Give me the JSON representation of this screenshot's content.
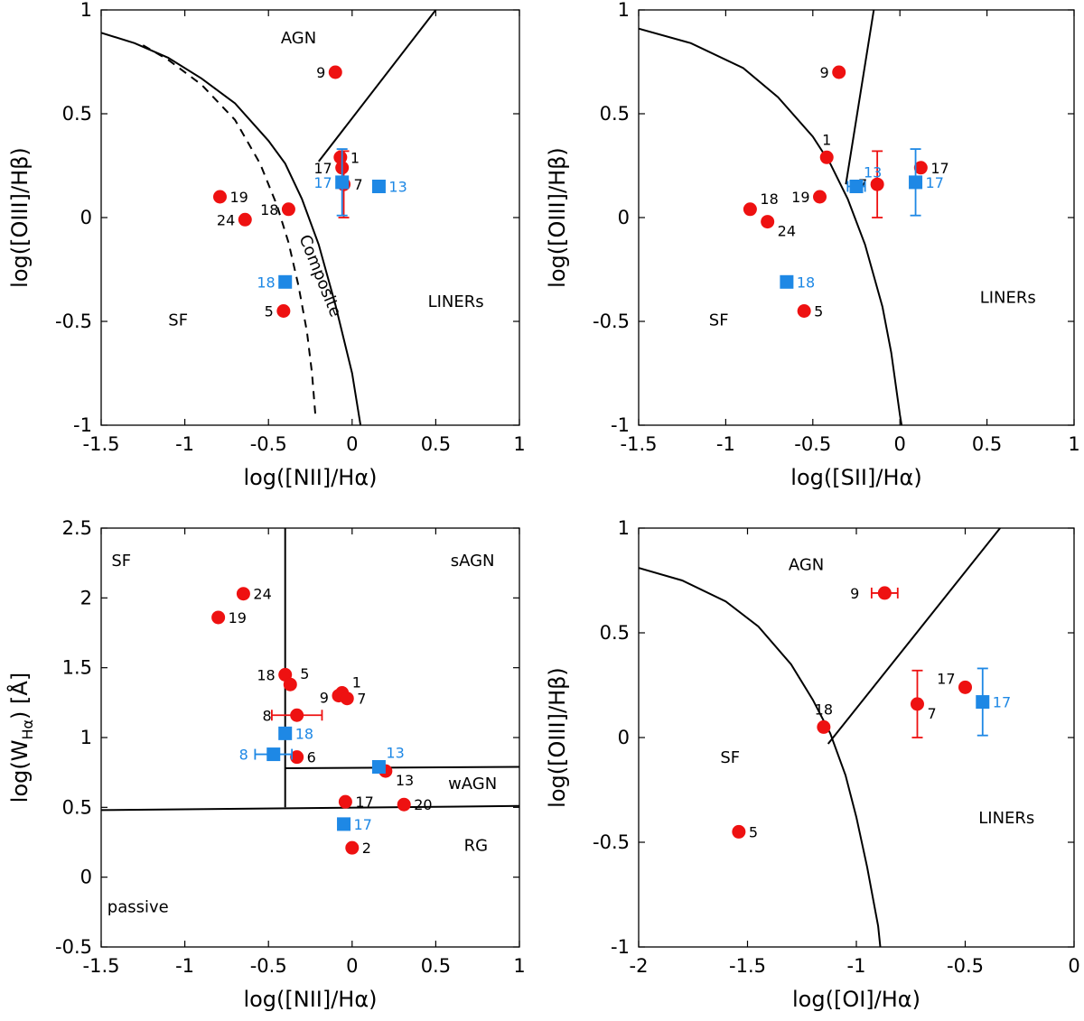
{
  "colors": {
    "red": "#ee1111",
    "blue": "#1e88e5",
    "axis": "#000000"
  },
  "chart_data": [
    {
      "type": "scatter",
      "xlabel": "log([NII]/Hα)",
      "ylabel": "log([OIII]/Hβ)",
      "xlim": [
        -1.5,
        1
      ],
      "ylim": [
        -1,
        1
      ],
      "xticks": [
        -1.5,
        -1,
        -0.5,
        0,
        0.5,
        1
      ],
      "xticklabels": [
        "-1.5",
        "-1",
        "-0.5",
        "0",
        "0.5",
        "1"
      ],
      "yticks": [
        -1,
        -0.5,
        0,
        0.5,
        1
      ],
      "yticklabels": [
        "-1",
        "-0.5",
        "0",
        "0.5",
        "1"
      ],
      "curves": [
        {
          "style": "solid",
          "points": [
            [
              -1.5,
              0.89
            ],
            [
              -1.3,
              0.84
            ],
            [
              -1.1,
              0.77
            ],
            [
              -0.9,
              0.67
            ],
            [
              -0.7,
              0.55
            ],
            [
              -0.5,
              0.37
            ],
            [
              -0.4,
              0.26
            ],
            [
              -0.3,
              0.09
            ],
            [
              -0.2,
              -0.13
            ],
            [
              -0.1,
              -0.42
            ],
            [
              0,
              -0.75
            ],
            [
              0.05,
              -1
            ]
          ]
        },
        {
          "style": "dashed",
          "points": [
            [
              -1.25,
              0.83
            ],
            [
              -1.1,
              0.76
            ],
            [
              -0.9,
              0.64
            ],
            [
              -0.7,
              0.47
            ],
            [
              -0.55,
              0.26
            ],
            [
              -0.45,
              0.06
            ],
            [
              -0.38,
              -0.12
            ],
            [
              -0.32,
              -0.33
            ],
            [
              -0.27,
              -0.55
            ],
            [
              -0.24,
              -0.75
            ],
            [
              -0.22,
              -0.95
            ]
          ]
        },
        {
          "style": "solid",
          "points": [
            [
              -0.2,
              0.27
            ],
            [
              0.5,
              1
            ]
          ]
        }
      ],
      "regions": [
        {
          "text": "AGN",
          "x": -0.32,
          "y": 0.84
        },
        {
          "text": "SF",
          "x": -1.04,
          "y": -0.52
        },
        {
          "text": "LINERs",
          "x": 0.62,
          "y": -0.43
        },
        {
          "text": "Composite",
          "x": -0.22,
          "y": -0.29,
          "rotate": 68
        }
      ],
      "series": [
        {
          "marker": "circle",
          "color": "red",
          "points": [
            {
              "x": -0.1,
              "y": 0.7,
              "label": "9",
              "pos": "left"
            },
            {
              "x": -0.07,
              "y": 0.29,
              "label": "1",
              "pos": "right"
            },
            {
              "x": -0.06,
              "y": 0.24,
              "label": "17",
              "pos": "left"
            },
            {
              "x": -0.05,
              "y": 0.16,
              "label": "7",
              "pos": "right",
              "yerr": 0.16
            },
            {
              "x": -0.79,
              "y": 0.1,
              "label": "19",
              "pos": "right"
            },
            {
              "x": -0.38,
              "y": 0.04,
              "label": "18",
              "pos": "left"
            },
            {
              "x": -0.64,
              "y": -0.01,
              "label": "24",
              "pos": "left"
            },
            {
              "x": -0.41,
              "y": -0.45,
              "label": "5",
              "pos": "left"
            }
          ]
        },
        {
          "marker": "square",
          "color": "blue",
          "points": [
            {
              "x": -0.06,
              "y": 0.17,
              "label": "17",
              "pos": "left",
              "yerr": 0.16
            },
            {
              "x": 0.16,
              "y": 0.15,
              "label": "13",
              "pos": "right"
            },
            {
              "x": -0.4,
              "y": -0.31,
              "label": "18",
              "pos": "left"
            }
          ]
        }
      ]
    },
    {
      "type": "scatter",
      "xlabel": "log([SII]/Hα)",
      "ylabel": "log([OIII]/Hβ)",
      "xlim": [
        -1.5,
        1
      ],
      "ylim": [
        -1,
        1
      ],
      "xticks": [
        -1.5,
        -1,
        -0.5,
        0,
        0.5,
        1
      ],
      "xticklabels": [
        "-1.5",
        "-1",
        "-0.5",
        "0",
        "0.5",
        "1"
      ],
      "yticks": [
        -1,
        -0.5,
        0,
        0.5,
        1
      ],
      "yticklabels": [
        "-1",
        "-0.5",
        "0",
        "0.5",
        "1"
      ],
      "curves": [
        {
          "style": "solid",
          "points": [
            [
              -1.5,
              0.91
            ],
            [
              -1.2,
              0.84
            ],
            [
              -0.9,
              0.72
            ],
            [
              -0.7,
              0.58
            ],
            [
              -0.5,
              0.39
            ],
            [
              -0.4,
              0.26
            ],
            [
              -0.3,
              0.09
            ],
            [
              -0.2,
              -0.13
            ],
            [
              -0.1,
              -0.43
            ],
            [
              -0.05,
              -0.65
            ],
            [
              0,
              -0.95
            ],
            [
              0.01,
              -1
            ]
          ]
        },
        {
          "style": "solid",
          "points": [
            [
              -0.31,
              0.16
            ],
            [
              -0.15,
              1
            ]
          ]
        }
      ],
      "regions": [
        {
          "text": "SF",
          "x": -1.04,
          "y": -0.52
        },
        {
          "text": "LINERs",
          "x": 0.62,
          "y": -0.41
        }
      ],
      "series": [
        {
          "marker": "circle",
          "color": "red",
          "points": [
            {
              "x": -0.35,
              "y": 0.7,
              "label": "9",
              "pos": "left"
            },
            {
              "x": -0.42,
              "y": 0.29,
              "label": "1",
              "pos": "above"
            },
            {
              "x": 0.12,
              "y": 0.24,
              "label": "17",
              "pos": "right"
            },
            {
              "x": -0.13,
              "y": 0.16,
              "label": "7",
              "pos": "left",
              "yerr": 0.16
            },
            {
              "x": -0.46,
              "y": 0.1,
              "label": "19",
              "pos": "left"
            },
            {
              "x": -0.86,
              "y": 0.04,
              "label": "18",
              "pos": "right-up"
            },
            {
              "x": -0.76,
              "y": -0.02,
              "label": "24",
              "pos": "right-down"
            },
            {
              "x": -0.55,
              "y": -0.45,
              "label": "5",
              "pos": "right"
            }
          ]
        },
        {
          "marker": "square",
          "color": "blue",
          "points": [
            {
              "x": -0.25,
              "y": 0.15,
              "label": "13",
              "pos": "up-right",
              "xerr": 0.05
            },
            {
              "x": 0.09,
              "y": 0.17,
              "label": "17",
              "pos": "right",
              "yerr": 0.16
            },
            {
              "x": -0.65,
              "y": -0.31,
              "label": "18",
              "pos": "right"
            }
          ]
        }
      ]
    },
    {
      "type": "scatter",
      "xlabel": "log([NII]/Hα)",
      "ylabel": "log(W",
      "ylabel_sub": "Hα",
      "ylabel_tail": ") [Å]",
      "xlim": [
        -1.5,
        1
      ],
      "ylim": [
        -0.5,
        2.5
      ],
      "xticks": [
        -1.5,
        -1,
        -0.5,
        0,
        0.5,
        1
      ],
      "xticklabels": [
        "-1.5",
        "-1",
        "-0.5",
        "0",
        "0.5",
        "1"
      ],
      "yticks": [
        -0.5,
        0,
        0.5,
        1,
        1.5,
        2,
        2.5
      ],
      "yticklabels": [
        "-0.5",
        "0",
        "0.5",
        "1",
        "1.5",
        "2",
        "2.5"
      ],
      "curves": [
        {
          "style": "solid",
          "points": [
            [
              -0.4,
              0.5
            ],
            [
              -0.4,
              2.5
            ]
          ]
        },
        {
          "style": "solid",
          "points": [
            [
              -1.5,
              0.48
            ],
            [
              1,
              0.51
            ]
          ]
        },
        {
          "style": "solid",
          "points": [
            [
              -0.4,
              0.78
            ],
            [
              1,
              0.79
            ]
          ]
        }
      ],
      "regions": [
        {
          "text": "SF",
          "x": -1.38,
          "y": 2.23
        },
        {
          "text": "sAGN",
          "x": 0.72,
          "y": 2.23
        },
        {
          "text": "wAGN",
          "x": 0.72,
          "y": 0.63
        },
        {
          "text": "RG",
          "x": 0.74,
          "y": 0.19
        },
        {
          "text": "passive",
          "x": -1.28,
          "y": -0.25
        }
      ],
      "series": [
        {
          "marker": "circle",
          "color": "red",
          "points": [
            {
              "x": -0.65,
              "y": 2.03,
              "label": "24",
              "pos": "right"
            },
            {
              "x": -0.8,
              "y": 1.86,
              "label": "19",
              "pos": "right"
            },
            {
              "x": -0.4,
              "y": 1.45,
              "label": "18",
              "pos": "left"
            },
            {
              "x": -0.37,
              "y": 1.38,
              "label": "5",
              "pos": "right-up"
            },
            {
              "x": -0.06,
              "y": 1.32,
              "label": "1",
              "pos": "right-up"
            },
            {
              "x": -0.08,
              "y": 1.3,
              "label": "9",
              "pos": "left-down"
            },
            {
              "x": -0.03,
              "y": 1.28,
              "label": "7",
              "pos": "right"
            },
            {
              "x": -0.33,
              "y": 1.16,
              "label": "8",
              "pos": "left-far",
              "xerr": 0.15
            },
            {
              "x": -0.33,
              "y": 0.86,
              "label": "6",
              "pos": "right"
            },
            {
              "x": 0.2,
              "y": 0.76,
              "label": "13",
              "pos": "right-down"
            },
            {
              "x": -0.04,
              "y": 0.54,
              "label": "17",
              "pos": "right"
            },
            {
              "x": 0.31,
              "y": 0.52,
              "label": "20",
              "pos": "right"
            },
            {
              "x": 0.0,
              "y": 0.21,
              "label": "2",
              "pos": "right"
            }
          ]
        },
        {
          "marker": "square",
          "color": "blue",
          "points": [
            {
              "x": -0.4,
              "y": 1.03,
              "label": "18",
              "pos": "right"
            },
            {
              "x": -0.47,
              "y": 0.88,
              "label": "8",
              "pos": "left-far",
              "xerr": 0.11
            },
            {
              "x": 0.16,
              "y": 0.79,
              "label": "13",
              "pos": "up-right"
            },
            {
              "x": -0.05,
              "y": 0.38,
              "label": "17",
              "pos": "right"
            }
          ]
        }
      ]
    },
    {
      "type": "scatter",
      "xlabel": "log([OI]/Hα)",
      "ylabel": "log([OIII]/Hβ)",
      "xlim": [
        -2,
        0
      ],
      "ylim": [
        -1,
        1
      ],
      "xticks": [
        -2,
        -1.5,
        -1,
        -0.5,
        0
      ],
      "xticklabels": [
        "-2",
        "-1.5",
        "-1",
        "-0.5",
        "0"
      ],
      "yticks": [
        -1,
        -0.5,
        0,
        0.5,
        1
      ],
      "yticklabels": [
        "-1",
        "-0.5",
        "0",
        "0.5",
        "1"
      ],
      "curves": [
        {
          "style": "solid",
          "points": [
            [
              -2,
              0.81
            ],
            [
              -1.8,
              0.75
            ],
            [
              -1.6,
              0.65
            ],
            [
              -1.45,
              0.53
            ],
            [
              -1.3,
              0.35
            ],
            [
              -1.2,
              0.18
            ],
            [
              -1.12,
              0.02
            ],
            [
              -1.05,
              -0.18
            ],
            [
              -1.0,
              -0.38
            ],
            [
              -0.95,
              -0.62
            ],
            [
              -0.9,
              -0.9
            ],
            [
              -0.89,
              -1
            ]
          ]
        },
        {
          "style": "solid",
          "points": [
            [
              -1.13,
              -0.03
            ],
            [
              -0.34,
              1
            ]
          ]
        }
      ],
      "regions": [
        {
          "text": "AGN",
          "x": -1.23,
          "y": 0.8
        },
        {
          "text": "SF",
          "x": -1.58,
          "y": -0.12
        },
        {
          "text": "LINERs",
          "x": -0.31,
          "y": -0.41
        }
      ],
      "series": [
        {
          "marker": "circle",
          "color": "red",
          "points": [
            {
              "x": -0.87,
              "y": 0.69,
              "label": "9",
              "pos": "left-far",
              "xerr": 0.06
            },
            {
              "x": -0.5,
              "y": 0.24,
              "label": "17",
              "pos": "left-up"
            },
            {
              "x": -0.72,
              "y": 0.16,
              "label": "7",
              "pos": "right-down",
              "yerr": 0.16
            },
            {
              "x": -1.15,
              "y": 0.05,
              "label": "18",
              "pos": "above"
            },
            {
              "x": -1.54,
              "y": -0.45,
              "label": "5",
              "pos": "right"
            }
          ]
        },
        {
          "marker": "square",
          "color": "blue",
          "points": [
            {
              "x": -0.42,
              "y": 0.17,
              "label": "17",
              "pos": "right",
              "yerr": 0.16
            }
          ]
        }
      ]
    }
  ]
}
